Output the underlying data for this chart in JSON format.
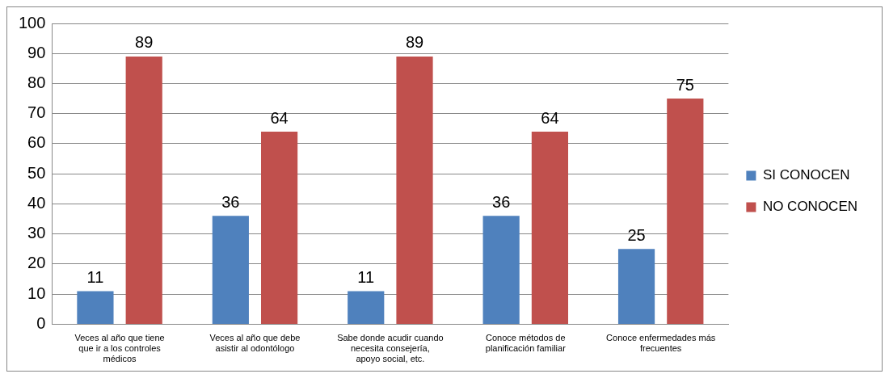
{
  "chart_data": {
    "type": "bar",
    "categories": [
      "Veces al año que tiene que ir a los controles médicos",
      "Veces al año que debe asistir al odontólogo",
      "Sabe donde acudir cuando necesita consejería, apoyo social, etc.",
      "Conoce métodos de planificación familiar",
      "Conoce enfermedades más frecuentes"
    ],
    "series": [
      {
        "name": "SI CONOCEN",
        "color": "#4f81bd",
        "values": [
          11,
          36,
          11,
          36,
          25
        ]
      },
      {
        "name": "NO CONOCEN",
        "color": "#c0504d",
        "values": [
          89,
          64,
          89,
          64,
          75
        ]
      }
    ],
    "ylim": [
      0,
      100
    ],
    "yticks": [
      0,
      10,
      20,
      30,
      40,
      50,
      60,
      70,
      80,
      90,
      100
    ],
    "grid": "y",
    "legend": "right",
    "data_labels": true
  }
}
